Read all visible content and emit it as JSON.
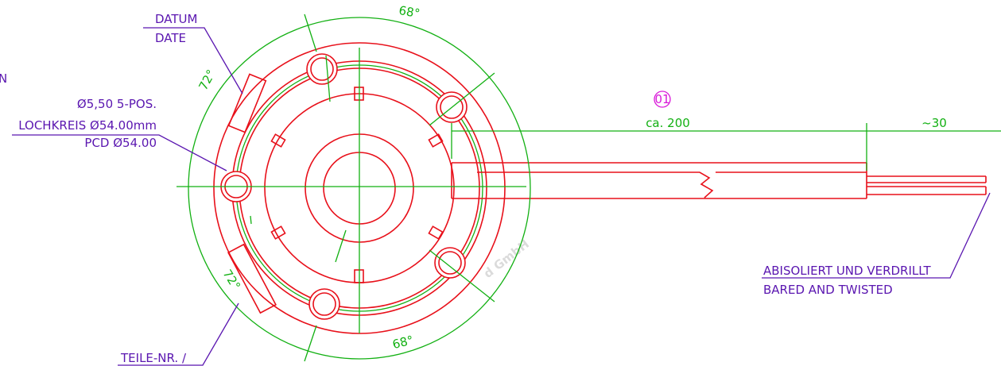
{
  "labels": {
    "datum": "DATUM",
    "date": "DATE",
    "edge_letter": "N",
    "hole_spec": "Ø5,50 5-POS.",
    "lochkreis": "LOCHKREIS Ø54.00mm",
    "pcd": "PCD Ø54.00",
    "angle_top": "68°",
    "angle_upper_left": "72°",
    "angle_lower_left": "72°",
    "angle_bottom": "68°",
    "item_number": "01",
    "cable_length": "ca. 200",
    "strip_length": "~30",
    "abisoliert": "ABISOLIERT UND VERDRILLT",
    "bared": "BARED AND TWISTED",
    "teile_nr": "TEILE-NR. /",
    "watermark": "d GmbH"
  }
}
